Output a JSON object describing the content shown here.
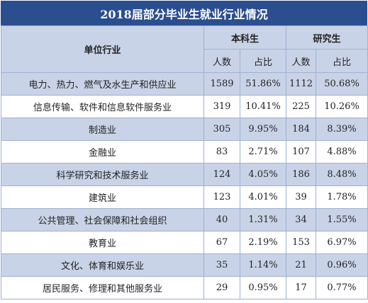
{
  "header": {
    "title": "2018届部分毕业生就业行业情况"
  },
  "table": {
    "column_headers": {
      "industry": "单位行业",
      "undergraduate": "本科生",
      "graduate": "研究生",
      "count": "人数",
      "share": "占比"
    },
    "rows": [
      [
        "电力、热力、燃气及水生产和供应业",
        "1589",
        "51.86%",
        "1112",
        "50.68%"
      ],
      [
        "信息传输、软件和信息软件服务业",
        "319",
        "10.41%",
        "225",
        "10.26%"
      ],
      [
        "制造业",
        "305",
        "9.95%",
        "184",
        "8.39%"
      ],
      [
        "金融业",
        "83",
        "2.71%",
        "107",
        "4.88%"
      ],
      [
        "科学研究和技术服务业",
        "124",
        "4.05%",
        "186",
        "8.48%"
      ],
      [
        "建筑业",
        "123",
        "4.01%",
        "39",
        "1.78%"
      ],
      [
        "公共管理、社会保障和社会组织",
        "40",
        "1.31%",
        "34",
        "1.55%"
      ],
      [
        "教育业",
        "67",
        "2.19%",
        "153",
        "6.97%"
      ],
      [
        "文化、体育和娱乐业",
        "35",
        "1.14%",
        "21",
        "0.96%"
      ],
      [
        "居民服务、修理和其他服务业",
        "29",
        "0.95%",
        "17",
        "0.77%"
      ]
    ]
  }
}
